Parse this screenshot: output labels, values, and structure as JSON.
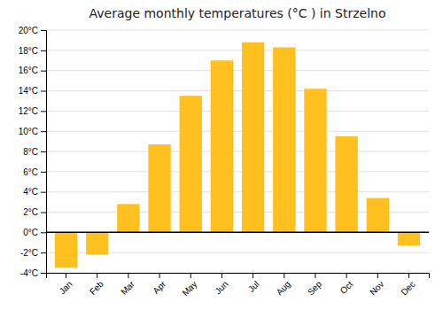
{
  "chart_data": {
    "type": "bar",
    "title": "Average monthly temperatures (°C ) in Strzelno",
    "categories": [
      "Jan",
      "Feb",
      "Mar",
      "Apr",
      "May",
      "Jun",
      "Jul",
      "Aug",
      "Sep",
      "Oct",
      "Nov",
      "Dec"
    ],
    "values": [
      -3.5,
      -2.2,
      2.8,
      8.7,
      13.5,
      17.0,
      18.8,
      18.3,
      14.2,
      9.5,
      3.4,
      -1.3
    ],
    "color": "#FFC020",
    "ylim": [
      -4,
      20
    ],
    "yticks": [
      {
        "value": -4,
        "label": "-4°C"
      },
      {
        "value": -2,
        "label": "-2°C"
      },
      {
        "value": 0,
        "label": "0°C"
      },
      {
        "value": 2,
        "label": "2°C"
      },
      {
        "value": 4,
        "label": "4°C"
      },
      {
        "value": 6,
        "label": "6°C"
      },
      {
        "value": 8,
        "label": "8°C"
      },
      {
        "value": 10,
        "label": "10°C"
      },
      {
        "value": 12,
        "label": "12°C"
      },
      {
        "value": 14,
        "label": "14°C"
      },
      {
        "value": 16,
        "label": "16°C"
      },
      {
        "value": 18,
        "label": "18°C"
      },
      {
        "value": 20,
        "label": "20°C"
      }
    ],
    "grid": true
  }
}
